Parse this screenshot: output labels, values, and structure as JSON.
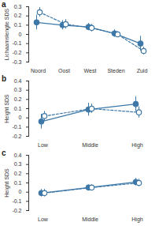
{
  "chart_data": [
    {
      "type": "line",
      "title": "a",
      "y_label": "Lichaamslengte SDS",
      "categories": [
        "Noord",
        "Oost",
        "West",
        "Steden",
        "Zuid"
      ],
      "ylim": [
        -0.3,
        0.3
      ],
      "yticks": [
        -0.3,
        -0.2,
        -0.1,
        0,
        0.1,
        0.2,
        0.3
      ],
      "series": [
        {
          "color": "#3d78a8",
          "marker": "circle",
          "line_style": "solid",
          "values": [
            0.13,
            0.1,
            0.08,
            0.01,
            -0.1
          ],
          "errors": [
            0.08,
            0.05,
            0.04,
            0.04,
            0.08
          ]
        },
        {
          "color": "#3d78a8",
          "marker": "circle-open",
          "line_style": "dashed",
          "values": [
            0.24,
            0.11,
            0.07,
            0.0,
            -0.18
          ],
          "errors": [
            0.05,
            0.05,
            0.04,
            0.03,
            0.04
          ]
        }
      ]
    },
    {
      "type": "line",
      "title": "b",
      "y_label": "Height SDS",
      "categories": [
        "Low",
        "Middle",
        "High"
      ],
      "ylim": [
        -0.2,
        0.4
      ],
      "yticks": [
        -0.2,
        -0.1,
        0,
        0.1,
        0.2,
        0.3,
        0.4
      ],
      "series": [
        {
          "color": "#3d78a8",
          "marker": "circle",
          "line_style": "solid",
          "values": [
            -0.04,
            0.09,
            0.15
          ],
          "errors": [
            0.08,
            0.07,
            0.08
          ]
        },
        {
          "color": "#3d78a8",
          "marker": "circle-open",
          "line_style": "dashed",
          "values": [
            0.02,
            0.1,
            0.06
          ],
          "errors": [
            0.05,
            0.05,
            0.06
          ]
        }
      ]
    },
    {
      "type": "line",
      "title": "c",
      "y_label": "Height SDS",
      "categories": [
        "Low",
        "Middle",
        "High"
      ],
      "ylim": [
        -0.2,
        0.4
      ],
      "yticks": [
        -0.2,
        -0.1,
        0,
        0.1,
        0.2,
        0.3,
        0.4
      ],
      "series": [
        {
          "color": "#3d78a8",
          "marker": "circle",
          "line_style": "solid",
          "values": [
            -0.01,
            0.05,
            0.11
          ],
          "errors": [
            0.04,
            0.03,
            0.04
          ]
        },
        {
          "color": "#3d78a8",
          "marker": "circle-open",
          "line_style": "dashed",
          "values": [
            -0.01,
            0.05,
            0.1
          ],
          "errors": [
            0.04,
            0.03,
            0.04
          ]
        }
      ]
    }
  ]
}
